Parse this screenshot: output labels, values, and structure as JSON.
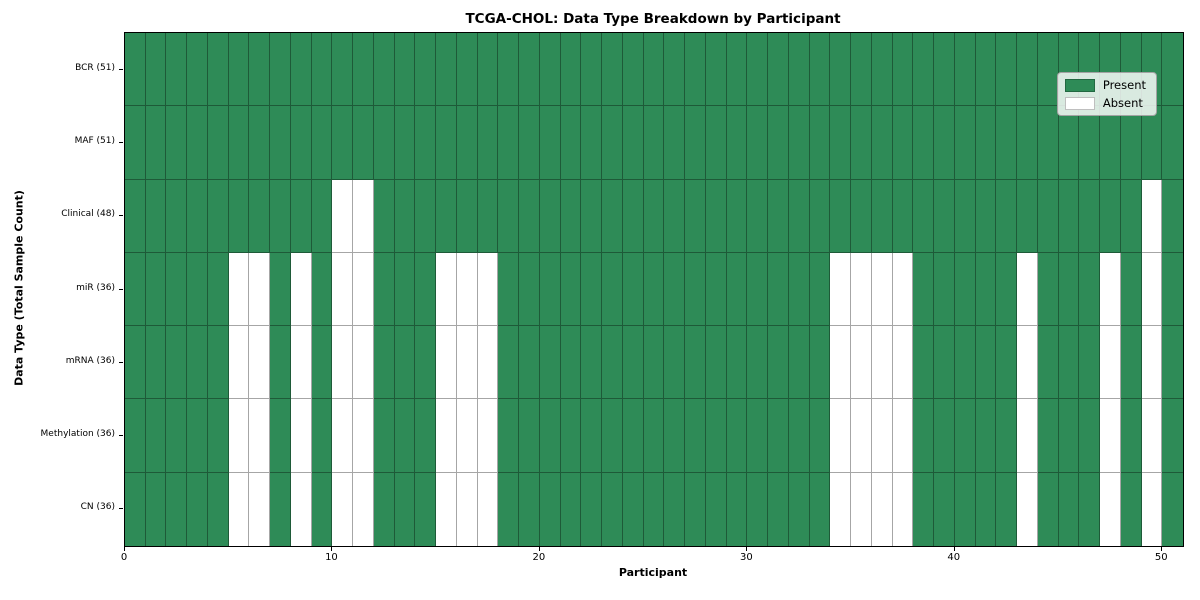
{
  "chart_data": {
    "type": "heatmap",
    "title": "TCGA-CHOL: Data Type Breakdown by Participant",
    "xlabel": "Participant",
    "ylabel": "Data Type (Total Sample Count)",
    "n_participants": 51,
    "x_ticks": [
      0,
      10,
      20,
      30,
      40,
      50
    ],
    "x_range": [
      0,
      51
    ],
    "grid": true,
    "legend_position": "upper right",
    "legend": [
      {
        "label": "Present",
        "color": "#2e8b57"
      },
      {
        "label": "Absent",
        "color": "#ffffff"
      }
    ],
    "colors": {
      "present": "#2e8b57",
      "absent": "#ffffff",
      "grid_line": "rgba(0,0,0,0.35)"
    },
    "rows": [
      {
        "label": "BCR (51)",
        "data_type": "BCR",
        "present_count": 51,
        "absent_participants": []
      },
      {
        "label": "MAF (51)",
        "data_type": "MAF",
        "present_count": 51,
        "absent_participants": []
      },
      {
        "label": "Clinical (48)",
        "data_type": "Clinical",
        "present_count": 48,
        "absent_participants": [
          10,
          11,
          49
        ]
      },
      {
        "label": "miR (36)",
        "data_type": "miR",
        "present_count": 36,
        "absent_participants": [
          5,
          6,
          8,
          10,
          11,
          15,
          16,
          17,
          34,
          35,
          36,
          37,
          43,
          47,
          49
        ]
      },
      {
        "label": "mRNA (36)",
        "data_type": "mRNA",
        "present_count": 36,
        "absent_participants": [
          5,
          6,
          8,
          10,
          11,
          15,
          16,
          17,
          34,
          35,
          36,
          37,
          43,
          47,
          49
        ]
      },
      {
        "label": "Methylation (36)",
        "data_type": "Methylation",
        "present_count": 36,
        "absent_participants": [
          5,
          6,
          8,
          10,
          11,
          15,
          16,
          17,
          34,
          35,
          36,
          37,
          43,
          47,
          49
        ]
      },
      {
        "label": "CN (36)",
        "data_type": "CN",
        "present_count": 36,
        "absent_participants": [
          5,
          6,
          8,
          10,
          11,
          15,
          16,
          17,
          34,
          35,
          36,
          37,
          43,
          47,
          49
        ]
      }
    ]
  }
}
